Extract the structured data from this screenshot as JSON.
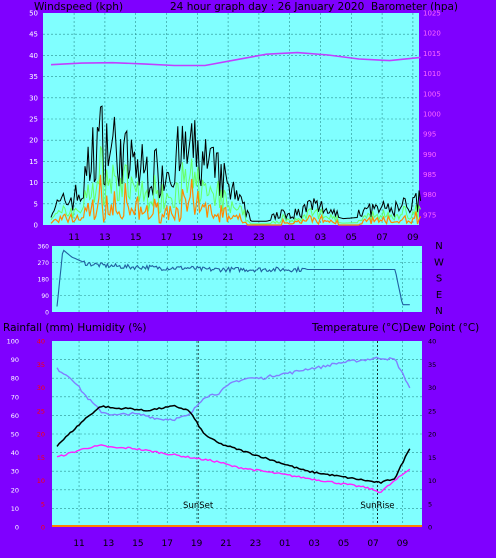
{
  "header": {
    "left": "Windspeed (kph)",
    "center": "24 hour graph day : 26 January 2020",
    "right": "Barometer (hpa)"
  },
  "middle_header": {
    "left": "Rainfall (mm)  Humidity (%)",
    "right": "Temperature (°C)Dew Point (°C)"
  },
  "colors": {
    "background": "#7f00ff",
    "plot": "#80ffff",
    "grid": "#2a9090",
    "wind_gust": "#000000",
    "wind_avg": "#66ff66",
    "wind_low": "#ff8800",
    "barometer": "#c040ff",
    "direction": "#2060a0",
    "humidity": "#8080ff",
    "temperature": "#000000",
    "dewpoint": "#ff22ff",
    "rain": "#ff8000",
    "left_axis": "#ffffff",
    "red_axis": "#ff0000",
    "right_axis_pink": "#ff66ff"
  },
  "chart_data": [
    {
      "type": "line",
      "name": "wind-barometer",
      "x_ticks": [
        "11",
        "13",
        "15",
        "17",
        "19",
        "21",
        "23",
        "01",
        "03",
        "05",
        "07",
        "09"
      ],
      "ylim": [
        0,
        50
      ],
      "y_ticks": [
        0,
        5,
        10,
        15,
        20,
        25,
        30,
        35,
        40,
        45,
        50
      ],
      "y2lim": [
        972.5,
        1025
      ],
      "y2_ticks": [
        975,
        980,
        985,
        990,
        995,
        1000,
        1005,
        1010,
        1015,
        1020,
        1025
      ],
      "xlabel": "",
      "ylabel": "Windspeed (kph)",
      "y2label": "Barometer (hpa)",
      "barometer_hours": [
        0,
        2,
        4,
        6,
        8,
        10,
        12,
        14,
        16,
        18,
        20,
        22,
        24
      ],
      "barometer_values": [
        1012.2,
        1012.6,
        1012.7,
        1012.4,
        1012.0,
        1012.0,
        1013.4,
        1014.8,
        1015.2,
        1014.6,
        1013.6,
        1013.2,
        1014.0
      ],
      "gust_profile_hours": [
        0,
        1,
        2,
        3,
        4,
        5,
        6,
        7,
        8,
        9,
        10,
        11,
        12,
        13,
        14,
        15,
        16,
        17,
        18,
        19,
        20,
        21,
        22,
        23,
        24
      ],
      "gust_profile_values": [
        4,
        6,
        8,
        22,
        20,
        16,
        14,
        13,
        16,
        19,
        16,
        12,
        7,
        1.5,
        1.5,
        3,
        3,
        5,
        4,
        2.5,
        3,
        4,
        4,
        5,
        6
      ],
      "grid": true
    },
    {
      "type": "line",
      "name": "wind-direction",
      "right_labels": [
        "N",
        "W",
        "S",
        "E",
        "N"
      ],
      "ylim": [
        0,
        360
      ],
      "y_ticks": [
        0,
        90,
        180,
        270,
        360
      ],
      "hours": [
        0,
        0.4,
        0.7,
        1,
        2,
        3,
        4,
        5,
        6,
        7,
        8,
        9,
        10,
        11,
        12,
        13,
        14,
        15,
        16,
        17,
        18,
        19,
        20,
        21,
        22,
        23,
        23.5,
        24
      ],
      "values": [
        30,
        340,
        320,
        300,
        265,
        255,
        250,
        245,
        245,
        240,
        240,
        240,
        232,
        232,
        232,
        232,
        232,
        232,
        232,
        232,
        232,
        232,
        232,
        232,
        232,
        232,
        40,
        40
      ],
      "grid": true
    },
    {
      "type": "line",
      "name": "temp-humidity-rain",
      "x_ticks": [
        "11",
        "13",
        "15",
        "17",
        "19",
        "21",
        "23",
        "01",
        "03",
        "05",
        "07",
        "09"
      ],
      "ylim": [
        0,
        100
      ],
      "y_ticks": [
        0,
        10,
        20,
        30,
        40,
        50,
        60,
        70,
        80,
        90,
        100
      ],
      "rain_ylim": [
        0,
        40
      ],
      "rain_ticks": [
        0,
        5,
        10,
        15,
        20,
        25,
        30,
        35,
        40
      ],
      "temp_ylim": [
        0,
        40
      ],
      "temp_ticks": [
        0,
        5,
        10,
        15,
        20,
        25,
        30,
        35,
        40
      ],
      "annotations": [
        "SunSet",
        "SunRise"
      ],
      "hours": [
        0,
        1,
        2,
        3,
        4,
        5,
        6,
        7,
        8,
        9,
        10,
        11,
        12,
        13,
        14,
        15,
        16,
        17,
        18,
        19,
        20,
        21,
        22,
        23,
        24
      ],
      "humidity": [
        85,
        80,
        70,
        62,
        60,
        61,
        60,
        58,
        58,
        60,
        70,
        72,
        78,
        80,
        80,
        82,
        83,
        85,
        86,
        88,
        89,
        90,
        91,
        90,
        75
      ],
      "temperature": [
        17.5,
        20.5,
        23.5,
        26,
        25.5,
        25.5,
        25,
        25.5,
        26,
        25,
        20,
        18,
        17,
        16,
        15,
        14,
        13,
        12,
        11.5,
        11,
        10.5,
        10,
        9.5,
        10.5,
        17
      ],
      "dewpoint": [
        15,
        16,
        17,
        17.5,
        17,
        17,
        16.5,
        16,
        15.5,
        15,
        14.5,
        14,
        13,
        12.5,
        12,
        11.5,
        11,
        10.5,
        10,
        9.5,
        9,
        8.5,
        7.5,
        10,
        12.5
      ],
      "rainfall": 0,
      "grid": true
    }
  ]
}
